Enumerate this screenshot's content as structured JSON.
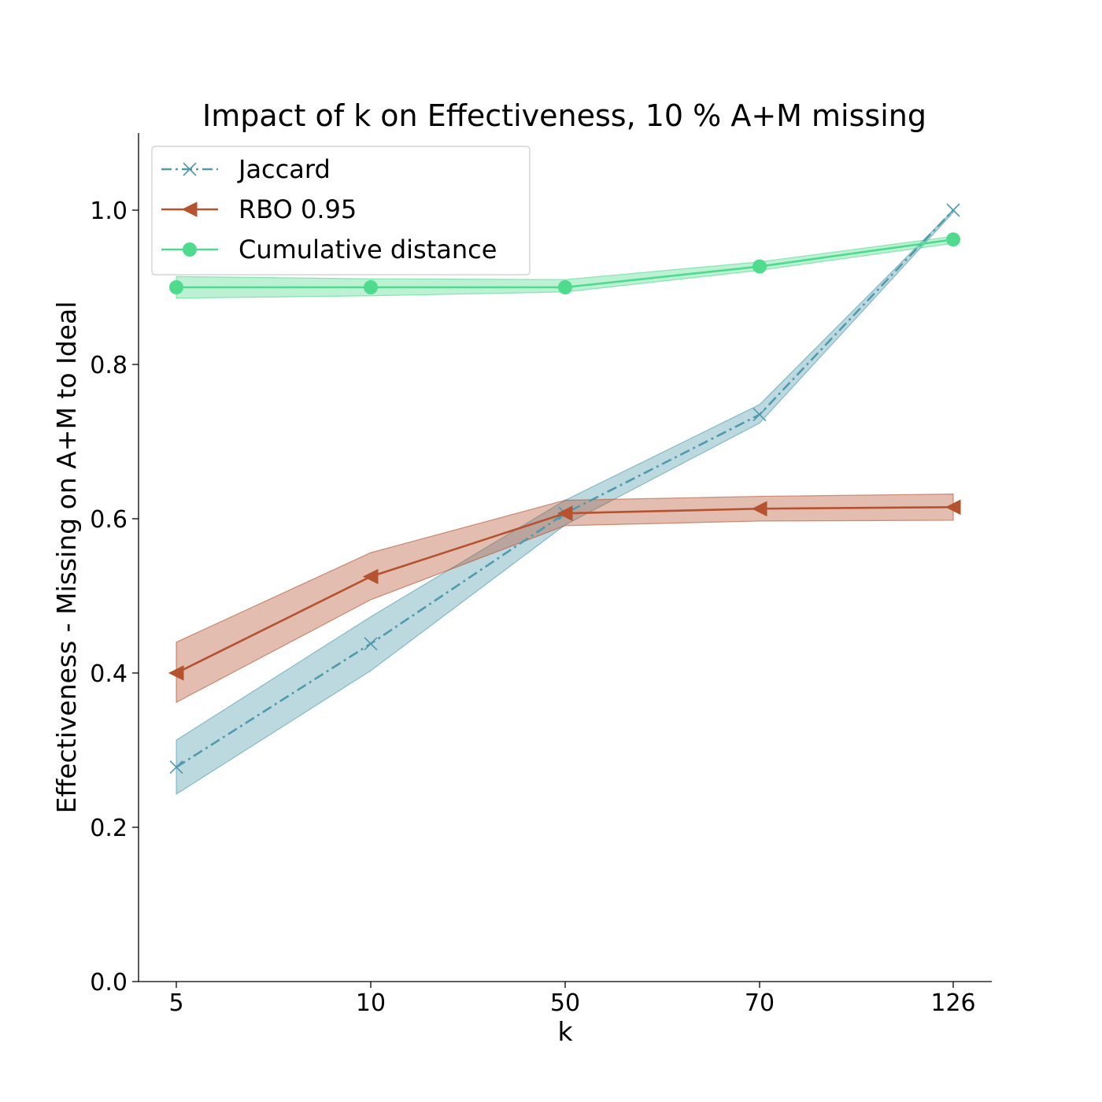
{
  "chart_data": {
    "type": "line",
    "title": "Impact of k on Effectiveness, 10 % A+M missing",
    "xlabel": "k",
    "ylabel": "Effectiveness - Missing on A+M to Ideal",
    "categories": [
      "5",
      "10",
      "50",
      "70",
      "126"
    ],
    "ylim": [
      0,
      1.1
    ],
    "yticks": [
      "0.0",
      "0.2",
      "0.4",
      "0.6",
      "0.8",
      "1.0"
    ],
    "ytick_values": [
      0,
      0.2,
      0.4,
      0.6,
      0.8,
      1.0
    ],
    "grid": false,
    "legend_position": "top-left",
    "series": [
      {
        "name": "Jaccard",
        "color": "#4f9aad",
        "marker": "x",
        "linestyle": "dashdot",
        "values": [
          0.278,
          0.438,
          0.607,
          0.735,
          1.0
        ],
        "lower": [
          0.243,
          0.403,
          0.592,
          0.724,
          0.997
        ],
        "upper": [
          0.313,
          0.473,
          0.624,
          0.748,
          1.0
        ]
      },
      {
        "name": "RBO 0.95",
        "color": "#b5522f",
        "marker": "triangle-left",
        "linestyle": "solid",
        "values": [
          0.4,
          0.525,
          0.607,
          0.613,
          0.615
        ],
        "lower": [
          0.362,
          0.495,
          0.591,
          0.597,
          0.598
        ],
        "upper": [
          0.44,
          0.556,
          0.624,
          0.629,
          0.632
        ]
      },
      {
        "name": "Cumulative distance",
        "color": "#4fdb8e",
        "marker": "circle",
        "linestyle": "solid",
        "values": [
          0.9,
          0.9,
          0.9,
          0.927,
          0.962
        ],
        "lower": [
          0.886,
          0.889,
          0.894,
          0.922,
          0.957
        ],
        "upper": [
          0.914,
          0.911,
          0.91,
          0.933,
          0.966
        ]
      }
    ]
  }
}
